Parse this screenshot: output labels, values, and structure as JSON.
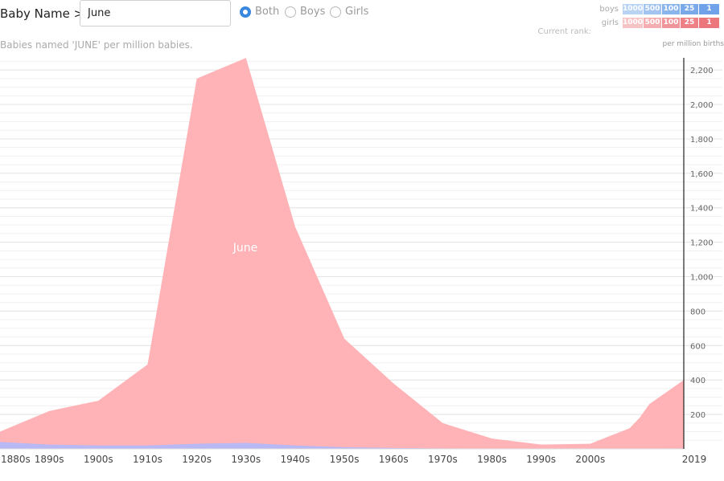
{
  "header": {
    "label": "Baby Name >",
    "search_value": "June",
    "radio_options": [
      {
        "label": "Both",
        "checked": true
      },
      {
        "label": "Boys",
        "checked": false
      },
      {
        "label": "Girls",
        "checked": false
      }
    ]
  },
  "subtitle": "Babies named 'JUNE' per million babies.",
  "rank_legend": {
    "boys_label": "boys",
    "girls_label": "girls",
    "current_rank_label": "Current rank:",
    "values": [
      "1000",
      "500",
      "100",
      "25",
      "1"
    ],
    "boys_colors": [
      "#b9d3f5",
      "#a3c4f0",
      "#8ab4ec",
      "#79a9e9",
      "#6fa2e8"
    ],
    "girls_colors": [
      "#f7c4c6",
      "#f4aeb1",
      "#f09599",
      "#ed8186",
      "#eb767b"
    ]
  },
  "unit_label": "per million births",
  "colors": {
    "girls_area": "#ffb3b7",
    "boys_area": "#aab8ff",
    "grid": "#e4e4e4",
    "axis": "#222222"
  },
  "chart_data": {
    "type": "area",
    "title": "Babies named 'JUNE' per million babies.",
    "ylabel": "per million births",
    "xlabel": "",
    "xlim": [
      1880,
      2019
    ],
    "ylim": [
      0,
      2280
    ],
    "grid": true,
    "area_label": "June",
    "x_ticks": [
      "1880s",
      "1890s",
      "1900s",
      "1910s",
      "1920s",
      "1930s",
      "1940s",
      "1950s",
      "1960s",
      "1970s",
      "1980s",
      "1990s",
      "2000s",
      "2019"
    ],
    "y_ticks": [
      "200",
      "400",
      "600",
      "800",
      "1,000",
      "1,200",
      "1,400",
      "1,600",
      "1,800",
      "2,000",
      "2,200"
    ],
    "series": [
      {
        "name": "girls",
        "x": [
          1880,
          1890,
          1900,
          1910,
          1920,
          1930,
          1940,
          1950,
          1960,
          1970,
          1980,
          1990,
          2000,
          2008,
          2010,
          2012,
          2014,
          2016,
          2019
        ],
        "values": [
          100,
          220,
          280,
          490,
          2150,
          2270,
          1290,
          640,
          380,
          150,
          60,
          25,
          30,
          120,
          180,
          260,
          300,
          340,
          400
        ]
      },
      {
        "name": "boys",
        "x": [
          1880,
          1890,
          1900,
          1910,
          1920,
          1930,
          1940,
          1950,
          1960,
          1970,
          1980,
          1990,
          2000,
          2010,
          2019
        ],
        "values": [
          40,
          25,
          20,
          20,
          30,
          35,
          20,
          10,
          5,
          3,
          2,
          2,
          2,
          2,
          3
        ]
      }
    ]
  }
}
